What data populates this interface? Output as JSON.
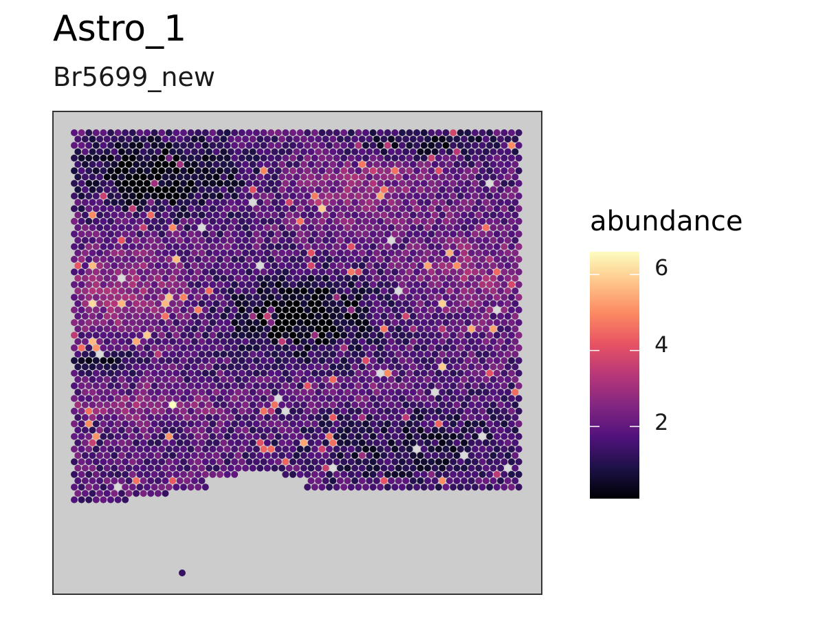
{
  "chart_data": {
    "type": "heatmap",
    "title": "Astro_1",
    "subtitle": "Br5699_new",
    "legend": {
      "title": "abundance",
      "position": "right",
      "range": [
        0.1,
        6.6
      ],
      "ticks": [
        2,
        4,
        6
      ],
      "tick_labels": [
        "2",
        "4",
        "6"
      ],
      "colormap": "magma",
      "colors": [
        "#000004",
        "#1d1147",
        "#51127c",
        "#822681",
        "#b73779",
        "#e75263",
        "#fc8961",
        "#fec488",
        "#fcfdbf"
      ]
    },
    "panel_background": "#cccccc",
    "na_color": "#cccccc",
    "grid": false,
    "axes_shown": false
  }
}
